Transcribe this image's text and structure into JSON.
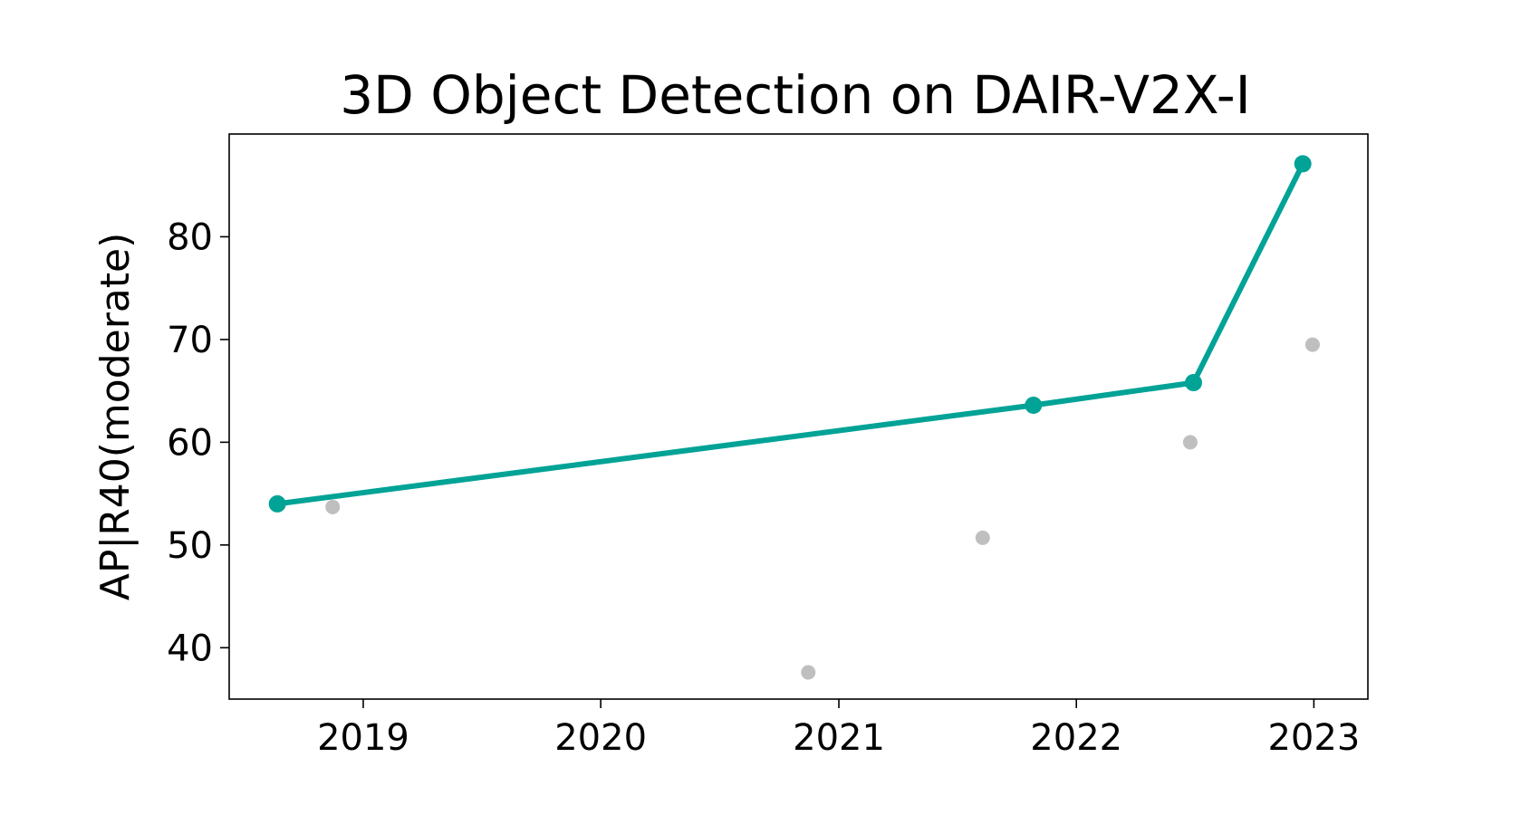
{
  "chart_data": {
    "type": "scatter",
    "title": "3D Object Detection on DAIR-V2X-I",
    "xlabel": "",
    "ylabel": "AP|R40(moderate)",
    "xlim": [
      "2018-06-09",
      "2023-03-25"
    ],
    "ylim": [
      35,
      90
    ],
    "x_ticks": [
      {
        "date": "2019-01-01",
        "label": "2019"
      },
      {
        "date": "2020-01-01",
        "label": "2020"
      },
      {
        "date": "2021-01-01",
        "label": "2021"
      },
      {
        "date": "2022-01-01",
        "label": "2022"
      },
      {
        "date": "2023-01-01",
        "label": "2023"
      }
    ],
    "y_ticks": [
      40,
      50,
      60,
      70,
      80
    ],
    "grid": false,
    "series": [
      {
        "role": "state-of-the-art",
        "color": "#00a396",
        "points": [
          {
            "date": "2018-08-22",
            "y": 54.0
          },
          {
            "date": "2021-10-27",
            "y": 63.6
          },
          {
            "date": "2022-06-30",
            "y": 65.8
          },
          {
            "date": "2022-12-15",
            "y": 87.1
          }
        ]
      },
      {
        "role": "other",
        "color": "#bfbfbf",
        "points": [
          {
            "date": "2018-11-15",
            "y": 53.7
          },
          {
            "date": "2020-11-15",
            "y": 37.6
          },
          {
            "date": "2021-08-10",
            "y": 50.7
          },
          {
            "date": "2022-06-25",
            "y": 60.0
          },
          {
            "date": "2022-12-30",
            "y": 69.5
          }
        ]
      }
    ]
  }
}
